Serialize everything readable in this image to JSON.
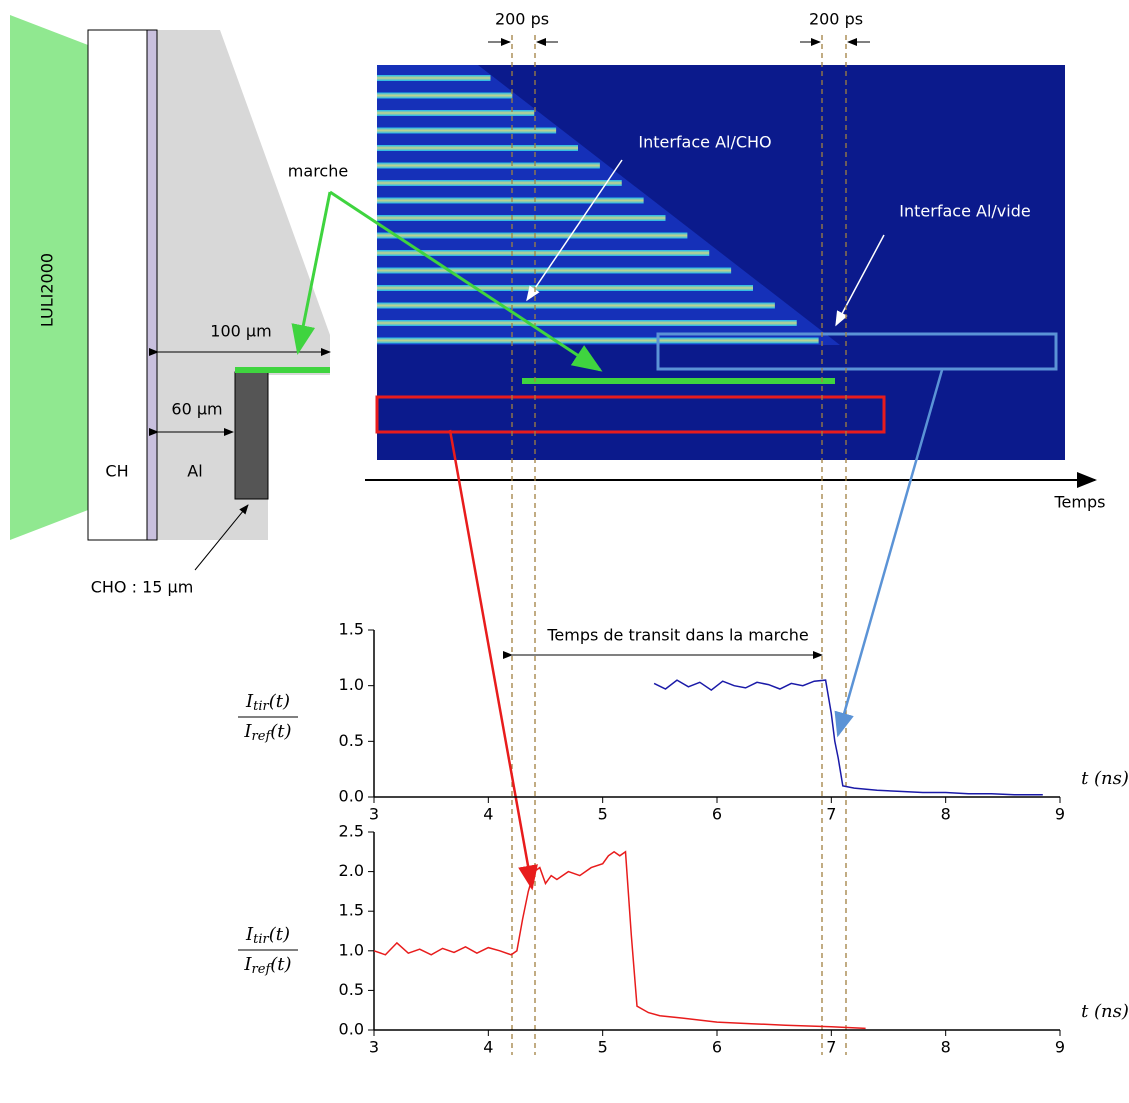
{
  "diagram": {
    "laser": "LULI2000",
    "ch": "CH",
    "al": "Al",
    "cho": "CHO : 15 µm",
    "d100": "100 µm",
    "d60": "60 µm",
    "marche": "marche",
    "ps1": "200 ps",
    "ps2": "200 ps",
    "iface_cho": "Interface Al/CHO",
    "iface_vide": "Interface Al/vide",
    "temps": "Temps",
    "transit": "Temps de transit dans la marche"
  },
  "chart_data": [
    {
      "type": "line",
      "xlabel": "t (ns)",
      "ylabel": {
        "num": [
          "I",
          "tir",
          "(t)"
        ],
        "den": [
          "I",
          "ref",
          "(t)"
        ]
      },
      "xlim": [
        3,
        9
      ],
      "xticks": [
        3,
        4,
        5,
        6,
        7,
        8,
        9
      ],
      "ylim": [
        0,
        1.5
      ],
      "yticks": [
        {
          "value": 0,
          "label": "0.0"
        },
        0.5,
        {
          "value": 1,
          "label": "1.0"
        },
        1.5
      ],
      "series": [
        {
          "color": "#1a1aa8",
          "x": [
            5.45,
            5.55,
            5.65,
            5.75,
            5.85,
            5.95,
            6.05,
            6.15,
            6.25,
            6.35,
            6.45,
            6.55,
            6.65,
            6.75,
            6.85,
            6.95,
            7.0,
            7.03,
            7.06,
            7.1,
            7.2,
            7.4,
            7.6,
            7.8,
            8.0,
            8.2,
            8.4,
            8.6,
            8.85
          ],
          "values": [
            1.02,
            0.97,
            1.05,
            0.99,
            1.03,
            0.96,
            1.04,
            1.0,
            0.98,
            1.03,
            1.01,
            0.97,
            1.02,
            1.0,
            1.04,
            1.05,
            0.75,
            0.5,
            0.35,
            0.1,
            0.08,
            0.06,
            0.05,
            0.04,
            0.04,
            0.03,
            0.03,
            0.02,
            0.02
          ]
        }
      ]
    },
    {
      "type": "line",
      "xlabel": "t (ns)",
      "ylabel": {
        "num": [
          "I",
          "tir",
          "(t)"
        ],
        "den": [
          "I",
          "ref",
          "(t)"
        ]
      },
      "xlim": [
        3,
        9
      ],
      "xticks": [
        3,
        4,
        5,
        6,
        7,
        8,
        9
      ],
      "ylim": [
        0,
        2.5
      ],
      "yticks": [
        {
          "value": 0,
          "label": "0.0"
        },
        0.5,
        {
          "value": 1,
          "label": "1.0"
        },
        1.5,
        {
          "value": 2,
          "label": "2.0"
        },
        2.5
      ],
      "series": [
        {
          "color": "#e81c1c",
          "x": [
            3.0,
            3.1,
            3.2,
            3.3,
            3.4,
            3.5,
            3.6,
            3.7,
            3.8,
            3.9,
            4.0,
            4.1,
            4.2,
            4.25,
            4.3,
            4.35,
            4.4,
            4.45,
            4.5,
            4.55,
            4.6,
            4.7,
            4.8,
            4.9,
            5.0,
            5.05,
            5.1,
            5.15,
            5.2,
            5.25,
            5.3,
            5.4,
            5.5,
            5.7,
            6.0,
            6.3,
            6.6,
            7.0,
            7.3
          ],
          "values": [
            1.0,
            0.95,
            1.1,
            0.97,
            1.02,
            0.95,
            1.03,
            0.98,
            1.05,
            0.97,
            1.04,
            1.0,
            0.95,
            1.0,
            1.4,
            1.75,
            2.0,
            2.05,
            1.85,
            1.95,
            1.9,
            2.0,
            1.95,
            2.05,
            2.1,
            2.2,
            2.25,
            2.2,
            2.25,
            1.2,
            0.3,
            0.22,
            0.18,
            0.15,
            0.1,
            0.08,
            0.06,
            0.04,
            0.02
          ]
        }
      ]
    }
  ]
}
